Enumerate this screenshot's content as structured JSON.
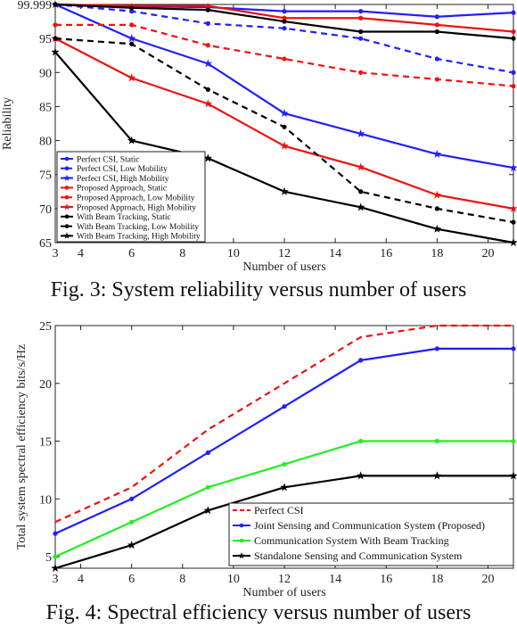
{
  "fig3": {
    "caption": "Fig. 3: System reliability versus number of users",
    "chart_data": {
      "type": "line",
      "xlabel": "Number of users",
      "ylabel": "Reliability",
      "xlim": [
        3,
        21
      ],
      "ylim": [
        65,
        100
      ],
      "x_ticks": [
        3,
        4,
        6,
        8,
        10,
        12,
        14,
        16,
        18,
        20
      ],
      "y_ticks": [
        65,
        70,
        75,
        80,
        85,
        90,
        95,
        99.999
      ],
      "y_tick_labels": [
        "65",
        "70",
        "75",
        "80",
        "85",
        "90",
        "95",
        "99.999"
      ],
      "grid": false,
      "legend_position": "bottom-left",
      "series": [
        {
          "name": "Perfect CSI, Static",
          "color": "#1f1fff",
          "dash": "solid",
          "marker": "dot",
          "x": [
            3,
            6,
            9,
            12,
            15,
            18,
            21
          ],
          "y": [
            99.999,
            99.7,
            99.6,
            99.0,
            99.0,
            98.2,
            98.8
          ]
        },
        {
          "name": "Perfect CSI, Low Mobility",
          "color": "#1f1fff",
          "dash": "dashed",
          "marker": "dot",
          "x": [
            3,
            6,
            9,
            12,
            15,
            18,
            21
          ],
          "y": [
            99.999,
            99.0,
            97.2,
            96.5,
            95.0,
            92.0,
            90.0
          ]
        },
        {
          "name": "Perfect CSI, High Mobility",
          "color": "#1f1fff",
          "dash": "solid",
          "marker": "star",
          "x": [
            3,
            6,
            9,
            12,
            15,
            18,
            21
          ],
          "y": [
            99.999,
            95.0,
            91.3,
            84.0,
            81.0,
            78.0,
            76.0
          ]
        },
        {
          "name": "Proposed Approach, Static",
          "color": "#ee1111",
          "dash": "solid",
          "marker": "dot",
          "x": [
            3,
            6,
            9,
            12,
            15,
            18,
            21
          ],
          "y": [
            99.999,
            99.8,
            99.8,
            98.0,
            98.0,
            97.0,
            96.0
          ]
        },
        {
          "name": "Proposed Approach, Low Mobility",
          "color": "#ee1111",
          "dash": "dashed",
          "marker": "dot",
          "x": [
            3,
            6,
            9,
            12,
            15,
            18,
            21
          ],
          "y": [
            97.0,
            97.0,
            94.0,
            92.0,
            90.0,
            89.0,
            88.0
          ]
        },
        {
          "name": "Proposed Approach, High Mobility",
          "color": "#ee1111",
          "dash": "solid",
          "marker": "star",
          "x": [
            3,
            6,
            9,
            12,
            15,
            18,
            21
          ],
          "y": [
            95.0,
            89.2,
            85.4,
            79.2,
            76.1,
            72.0,
            70.0
          ]
        },
        {
          "name": "With Beam Tracking, Static",
          "color": "#000000",
          "dash": "solid",
          "marker": "dot",
          "x": [
            3,
            6,
            9,
            12,
            15,
            18,
            21
          ],
          "y": [
            99.999,
            99.5,
            99.2,
            97.5,
            96.0,
            96.0,
            95.0
          ]
        },
        {
          "name": "With Beam Tracking, Low Mobility",
          "color": "#000000",
          "dash": "dashed",
          "marker": "dot",
          "x": [
            3,
            6,
            9,
            12,
            15,
            18,
            21
          ],
          "y": [
            95.0,
            94.2,
            87.5,
            82.0,
            72.5,
            70.0,
            68.0
          ]
        },
        {
          "name": "With Beam Tracking, High Mobility",
          "color": "#000000",
          "dash": "solid",
          "marker": "star",
          "x": [
            3,
            6,
            9,
            12,
            15,
            18,
            21
          ],
          "y": [
            93.0,
            80.0,
            77.4,
            72.5,
            70.2,
            67.0,
            65.0
          ]
        }
      ]
    }
  },
  "fig4": {
    "caption": "Fig. 4: Spectral efficiency versus number of users",
    "chart_data": {
      "type": "line",
      "xlabel": "Number of users",
      "ylabel": "Total system spectral efficiency bits/s/Hz",
      "xlim": [
        3,
        21
      ],
      "ylim": [
        4,
        25
      ],
      "x_ticks": [
        3,
        4,
        6,
        8,
        10,
        12,
        14,
        16,
        18,
        20
      ],
      "y_ticks": [
        5,
        10,
        15,
        20,
        25
      ],
      "y_tick_labels": [
        "5",
        "10",
        "15",
        "20",
        "25"
      ],
      "grid": false,
      "legend_position": "bottom-right",
      "series": [
        {
          "name": "Perfect CSI",
          "color": "#ee1111",
          "dash": "dashed",
          "marker": "none",
          "x": [
            3,
            6,
            9,
            12,
            15,
            18,
            21
          ],
          "y": [
            8,
            11,
            16,
            20,
            24,
            25,
            25
          ]
        },
        {
          "name": "Joint Sensing and Communication System (Proposed)",
          "color": "#1f1fff",
          "dash": "solid",
          "marker": "dot",
          "x": [
            3,
            6,
            9,
            12,
            15,
            18,
            21
          ],
          "y": [
            7,
            10,
            14,
            18,
            22,
            23,
            23
          ]
        },
        {
          "name": "Communication System With Beam Tracking",
          "color": "#22ee22",
          "dash": "solid",
          "marker": "dot",
          "x": [
            3,
            6,
            9,
            12,
            15,
            18,
            21
          ],
          "y": [
            5,
            8,
            11,
            13,
            15,
            15,
            15
          ]
        },
        {
          "name": "Standalone Sensing and Communication System",
          "color": "#000000",
          "dash": "solid",
          "marker": "star",
          "x": [
            3,
            6,
            9,
            12,
            15,
            18,
            21
          ],
          "y": [
            4,
            6,
            9,
            11,
            12,
            12,
            12
          ]
        }
      ]
    }
  }
}
